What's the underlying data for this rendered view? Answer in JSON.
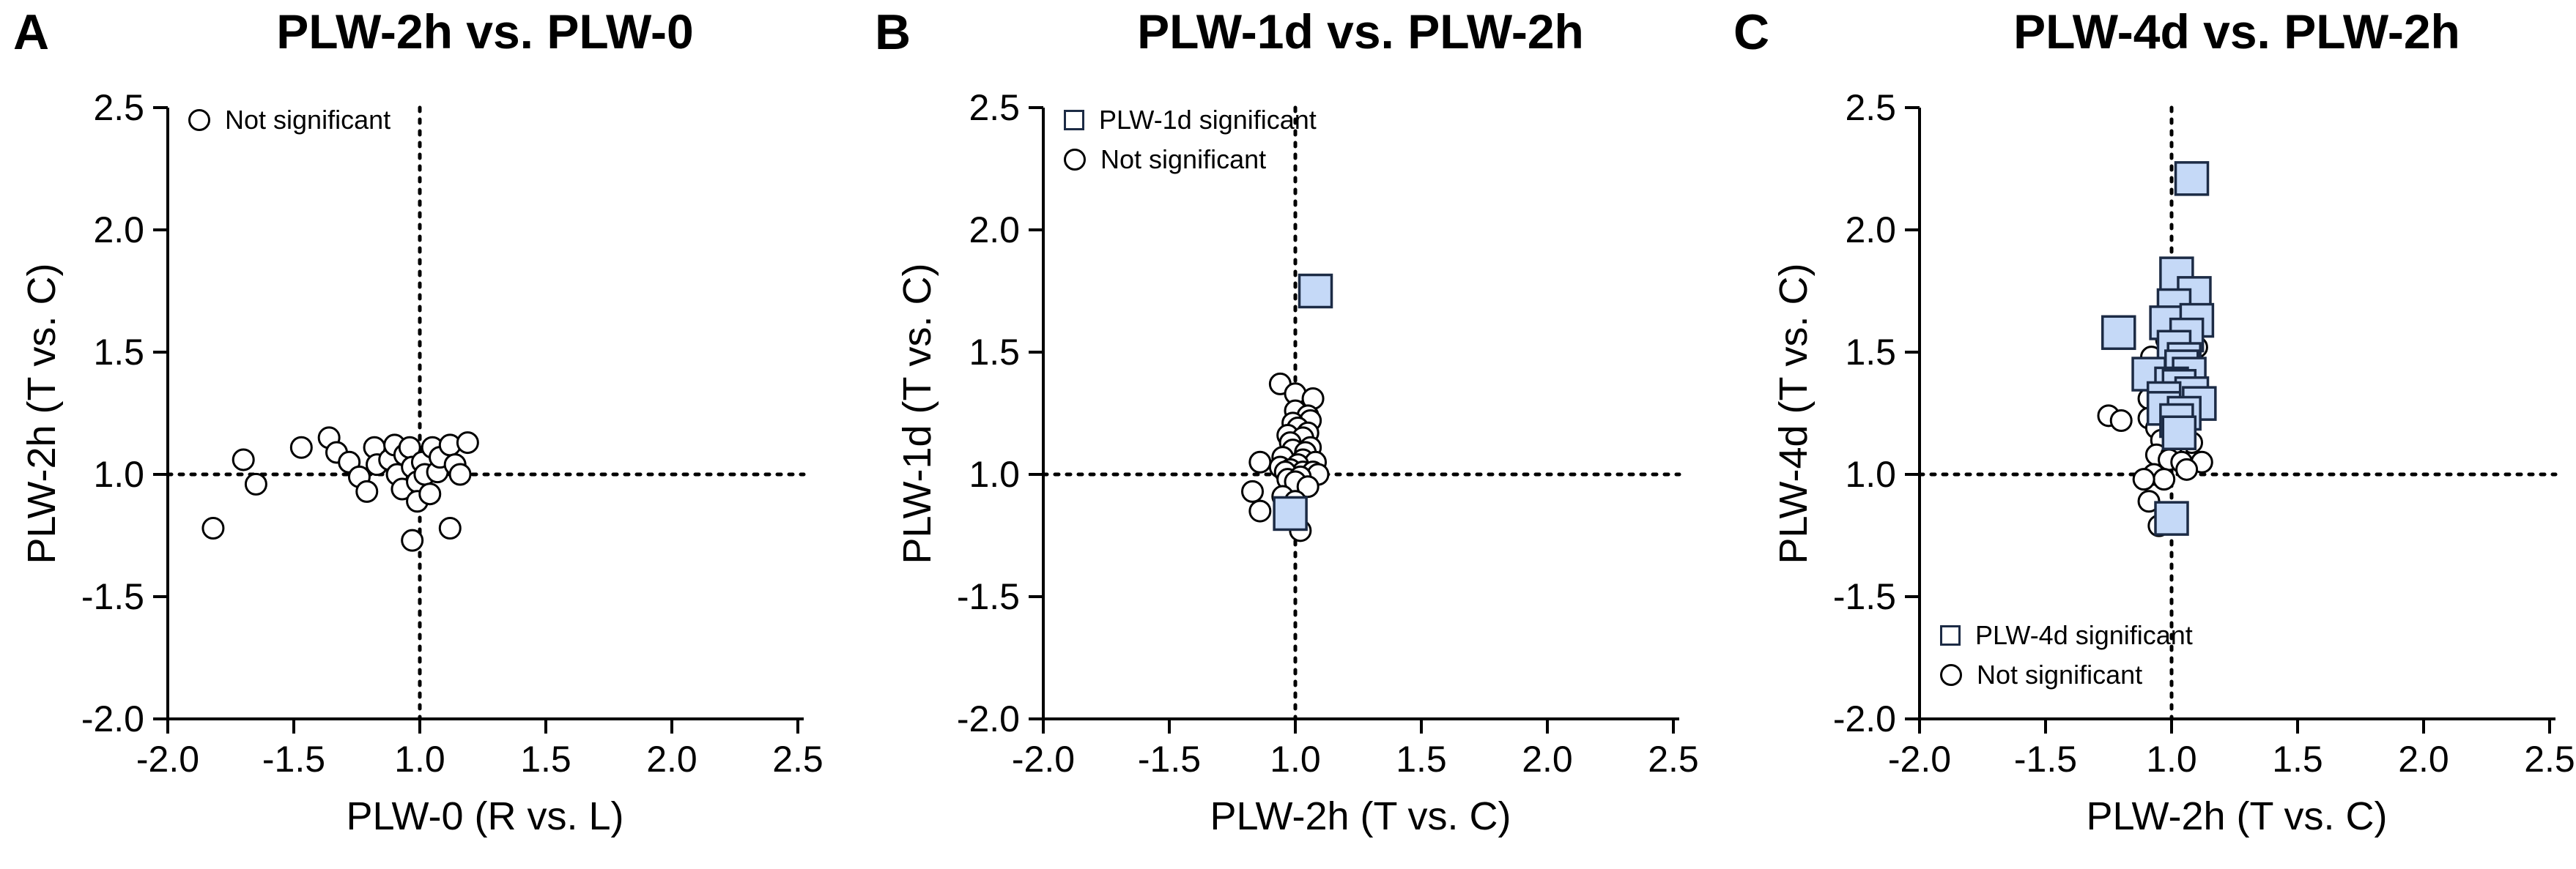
{
  "figure": {
    "kind": "three-panel fold-change scatter figure",
    "background": "#ffffff",
    "colors": {
      "significant_fill": "#c5d9f7",
      "significant_stroke": "#1c2b45",
      "not_significant_fill": "#ffffff",
      "marker_stroke": "#000000",
      "axis": "#000000",
      "text": "#000000"
    }
  },
  "chart_data": [
    {
      "type": "scatter",
      "panel_letter": "A",
      "title": "PLW-2h vs. PLW-0",
      "xlabel": "PLW-0 (R vs. L)",
      "ylabel": "PLW-2h (T vs. C)",
      "x_tick_labels": [
        "-2.0",
        "-1.5",
        "1.0",
        "1.5",
        "2.0",
        "2.5"
      ],
      "x_tick_values": [
        -2.0,
        -1.5,
        1.0,
        1.5,
        2.0,
        2.5
      ],
      "y_tick_labels": [
        "2.5",
        "2.0",
        "1.5",
        "1.0",
        "-1.5",
        "-2.0"
      ],
      "y_tick_values": [
        2.5,
        2.0,
        1.5,
        1.0,
        -1.5,
        -2.0
      ],
      "x_range": [
        -2.0,
        2.5
      ],
      "y_range": [
        -2.0,
        2.5
      ],
      "axis_note": "signed fold-change axes; +1.0 and -1.0 coincide at the dotted reference lines",
      "reference_lines": {
        "x": 1.0,
        "y": 1.0,
        "style": "dotted"
      },
      "grid": false,
      "legend": {
        "position": "top-left",
        "items": [
          {
            "marker": "circle",
            "label": "Not significant"
          }
        ]
      },
      "series": [
        {
          "name": "Not significant",
          "marker": "circle",
          "points": [
            [
              -1.82,
              -1.22
            ],
            [
              -1.7,
              1.06
            ],
            [
              -1.65,
              -1.04
            ],
            [
              -1.47,
              1.11
            ],
            [
              -1.36,
              1.15
            ],
            [
              -1.33,
              1.09
            ],
            [
              -1.28,
              1.05
            ],
            [
              -1.24,
              -1.01
            ],
            [
              -1.21,
              -1.07
            ],
            [
              -1.18,
              1.11
            ],
            [
              -1.17,
              1.04
            ],
            [
              -1.12,
              1.06
            ],
            [
              -1.1,
              1.12
            ],
            [
              -1.09,
              1.0
            ],
            [
              -1.07,
              -1.06
            ],
            [
              -1.06,
              1.08
            ],
            [
              -1.04,
              1.11
            ],
            [
              -1.03,
              1.03
            ],
            [
              -1.01,
              -1.03
            ],
            [
              -1.01,
              -1.11
            ],
            [
              1.01,
              1.05
            ],
            [
              1.02,
              1.0
            ],
            [
              1.04,
              -1.08
            ],
            [
              1.05,
              1.11
            ],
            [
              1.07,
              1.01
            ],
            [
              1.08,
              1.07
            ],
            [
              1.12,
              1.12
            ],
            [
              1.14,
              1.04
            ],
            [
              1.16,
              1.0
            ],
            [
              1.19,
              1.13
            ],
            [
              -1.03,
              -1.27
            ],
            [
              1.12,
              -1.22
            ]
          ]
        }
      ]
    },
    {
      "type": "scatter",
      "panel_letter": "B",
      "title": "PLW-1d vs. PLW-2h",
      "xlabel": "PLW-2h (T vs. C)",
      "ylabel": "PLW-1d (T vs. C)",
      "x_tick_labels": [
        "-2.0",
        "-1.5",
        "1.0",
        "1.5",
        "2.0",
        "2.5"
      ],
      "x_tick_values": [
        -2.0,
        -1.5,
        1.0,
        1.5,
        2.0,
        2.5
      ],
      "y_tick_labels": [
        "2.5",
        "2.0",
        "1.5",
        "1.0",
        "-1.5",
        "-2.0"
      ],
      "y_tick_values": [
        2.5,
        2.0,
        1.5,
        1.0,
        -1.5,
        -2.0
      ],
      "x_range": [
        -2.0,
        2.5
      ],
      "y_range": [
        -2.0,
        2.5
      ],
      "axis_note": "signed fold-change axes; +1.0 and -1.0 coincide at the dotted reference lines",
      "reference_lines": {
        "x": 1.0,
        "y": 1.0,
        "style": "dotted"
      },
      "grid": false,
      "legend": {
        "position": "top-left",
        "items": [
          {
            "marker": "square",
            "label": "PLW-1d significant"
          },
          {
            "marker": "circle",
            "label": "Not significant"
          }
        ]
      },
      "series": [
        {
          "name": "Not significant",
          "marker": "circle",
          "points": [
            [
              -1.06,
              1.37
            ],
            [
              1.0,
              1.33
            ],
            [
              1.07,
              1.31
            ],
            [
              1.0,
              1.26
            ],
            [
              1.05,
              1.24
            ],
            [
              1.06,
              1.22
            ],
            [
              -1.01,
              1.21
            ],
            [
              1.01,
              1.19
            ],
            [
              1.05,
              1.17
            ],
            [
              -1.03,
              1.16
            ],
            [
              1.03,
              1.15
            ],
            [
              -1.02,
              1.13
            ],
            [
              1.06,
              1.11
            ],
            [
              -1.01,
              1.1
            ],
            [
              1.04,
              1.09
            ],
            [
              -1.05,
              1.07
            ],
            [
              1.03,
              1.06
            ],
            [
              -1.14,
              1.05
            ],
            [
              1.08,
              1.05
            ],
            [
              1.01,
              1.04
            ],
            [
              -1.06,
              1.03
            ],
            [
              -1.02,
              1.02
            ],
            [
              1.03,
              1.01
            ],
            [
              1.07,
              1.01
            ],
            [
              -1.04,
              1.01
            ],
            [
              1.09,
              1.0
            ],
            [
              -1.03,
              -1.02
            ],
            [
              1.02,
              -1.01
            ],
            [
              1.0,
              -1.03
            ],
            [
              1.05,
              -1.05
            ],
            [
              -1.17,
              -1.07
            ],
            [
              -1.05,
              -1.09
            ],
            [
              1.0,
              -1.11
            ],
            [
              -1.14,
              -1.15
            ],
            [
              1.02,
              -1.23
            ]
          ]
        },
        {
          "name": "PLW-1d significant",
          "marker": "square",
          "points": [
            [
              1.08,
              1.75
            ],
            [
              -1.02,
              -1.16
            ]
          ]
        }
      ]
    },
    {
      "type": "scatter",
      "panel_letter": "C",
      "title": "PLW-4d vs. PLW-2h",
      "xlabel": "PLW-2h (T vs. C)",
      "ylabel": "PLW-4d (T vs. C)",
      "x_tick_labels": [
        "-2.0",
        "-1.5",
        "1.0",
        "1.5",
        "2.0",
        "2.5"
      ],
      "x_tick_values": [
        -2.0,
        -1.5,
        1.0,
        1.5,
        2.0,
        2.5
      ],
      "y_tick_labels": [
        "2.5",
        "2.0",
        "1.5",
        "1.0",
        "-1.5",
        "-2.0"
      ],
      "y_tick_values": [
        2.5,
        2.0,
        1.5,
        1.0,
        -1.5,
        -2.0
      ],
      "x_range": [
        -2.0,
        2.5
      ],
      "y_range": [
        -2.0,
        2.5
      ],
      "axis_note": "signed fold-change axes; +1.0 and -1.0 coincide at the dotted reference lines",
      "reference_lines": {
        "x": 1.0,
        "y": 1.0,
        "style": "dotted"
      },
      "grid": false,
      "legend": {
        "position": "bottom-left",
        "items": [
          {
            "marker": "square",
            "label": "PLW-4d significant"
          },
          {
            "marker": "circle",
            "label": "Not significant"
          }
        ]
      },
      "series": [
        {
          "name": "Not significant",
          "marker": "circle",
          "points": [
            [
              1.1,
              1.52
            ],
            [
              -1.08,
              1.48
            ],
            [
              -1.02,
              1.55
            ],
            [
              1.01,
              1.45
            ],
            [
              -1.25,
              1.24
            ],
            [
              -1.2,
              1.22
            ],
            [
              -1.09,
              1.31
            ],
            [
              1.04,
              1.33
            ],
            [
              1.09,
              1.34
            ],
            [
              -1.09,
              1.23
            ],
            [
              -1.06,
              1.19
            ],
            [
              -1.04,
              1.14
            ],
            [
              1.05,
              1.14
            ],
            [
              1.08,
              1.13
            ],
            [
              1.02,
              1.1
            ],
            [
              -1.06,
              1.08
            ],
            [
              1.0,
              1.08
            ],
            [
              -1.01,
              1.06
            ],
            [
              1.04,
              1.05
            ],
            [
              1.12,
              1.05
            ],
            [
              1.06,
              1.02
            ],
            [
              -1.07,
              1.0
            ],
            [
              -1.03,
              -1.02
            ],
            [
              -1.11,
              -1.02
            ],
            [
              -1.09,
              -1.11
            ],
            [
              -1.05,
              -1.21
            ]
          ]
        },
        {
          "name": "PLW-4d significant",
          "marker": "square",
          "points": [
            [
              1.08,
              2.21
            ],
            [
              1.02,
              1.82
            ],
            [
              1.09,
              1.74
            ],
            [
              1.01,
              1.69
            ],
            [
              -1.02,
              1.62
            ],
            [
              1.1,
              1.63
            ],
            [
              -1.21,
              1.58
            ],
            [
              1.06,
              1.57
            ],
            [
              1.01,
              1.52
            ],
            [
              1.05,
              1.47
            ],
            [
              1.04,
              1.44
            ],
            [
              -1.09,
              1.41
            ],
            [
              1.07,
              1.41
            ],
            [
              1.0,
              1.37
            ],
            [
              1.03,
              1.36
            ],
            [
              1.08,
              1.33
            ],
            [
              -1.03,
              1.31
            ],
            [
              1.11,
              1.29
            ],
            [
              -1.03,
              1.27
            ],
            [
              1.05,
              1.25
            ],
            [
              1.02,
              1.22
            ],
            [
              1.03,
              1.17
            ],
            [
              1.0,
              -1.18
            ]
          ]
        }
      ]
    }
  ]
}
